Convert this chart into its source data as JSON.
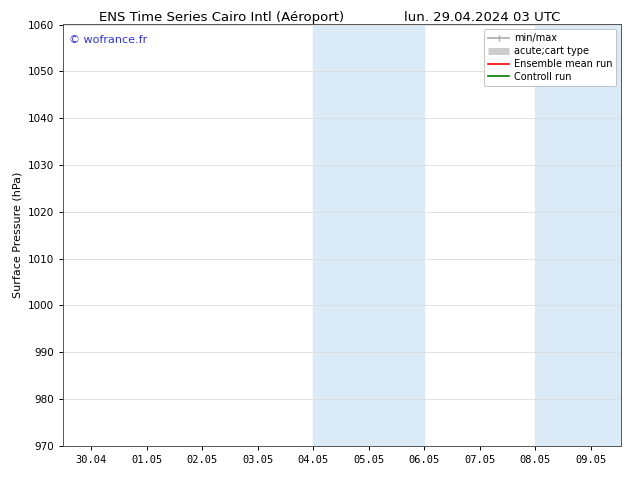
{
  "title_left": "ENS Time Series Cairo Intl (Aéroport)",
  "title_right": "lun. 29.04.2024 03 UTC",
  "ylabel": "Surface Pressure (hPa)",
  "ylim": [
    970,
    1060
  ],
  "yticks": [
    970,
    980,
    990,
    1000,
    1010,
    1020,
    1030,
    1040,
    1050,
    1060
  ],
  "x_labels": [
    "30.04",
    "01.05",
    "02.05",
    "03.05",
    "04.05",
    "05.05",
    "06.05",
    "07.05",
    "08.05",
    "09.05"
  ],
  "x_positions": [
    0,
    1,
    2,
    3,
    4,
    5,
    6,
    7,
    8,
    9
  ],
  "shaded_regions": [
    {
      "xmin": 4.0,
      "xmax": 5.0,
      "color": "#daeaf7"
    },
    {
      "xmin": 5.0,
      "xmax": 6.0,
      "color": "#daeaf7"
    },
    {
      "xmin": 8.0,
      "xmax": 9.0,
      "color": "#daeaf7"
    },
    {
      "xmin": 9.0,
      "xmax": 9.55,
      "color": "#daeaf7"
    }
  ],
  "watermark_text": "© wofrance.fr",
  "watermark_color": "#3333cc",
  "legend_entries": [
    {
      "label": "min/max",
      "color": "#aaaaaa",
      "lw": 1.2,
      "style": "minmax"
    },
    {
      "label": "acute;cart type",
      "color": "#cccccc",
      "lw": 5,
      "style": "thick"
    },
    {
      "label": "Ensemble mean run",
      "color": "#ff0000",
      "lw": 1.2,
      "style": "line"
    },
    {
      "label": "Controll run",
      "color": "#008000",
      "lw": 1.2,
      "style": "line"
    }
  ],
  "background_color": "#ffffff",
  "plot_bg_color": "#ffffff",
  "grid_color": "#dddddd",
  "title_fontsize": 9.5,
  "axis_label_fontsize": 8,
  "tick_fontsize": 7.5,
  "xlim": [
    -0.5,
    9.55
  ],
  "legend_fontsize": 7,
  "watermark_fontsize": 8
}
